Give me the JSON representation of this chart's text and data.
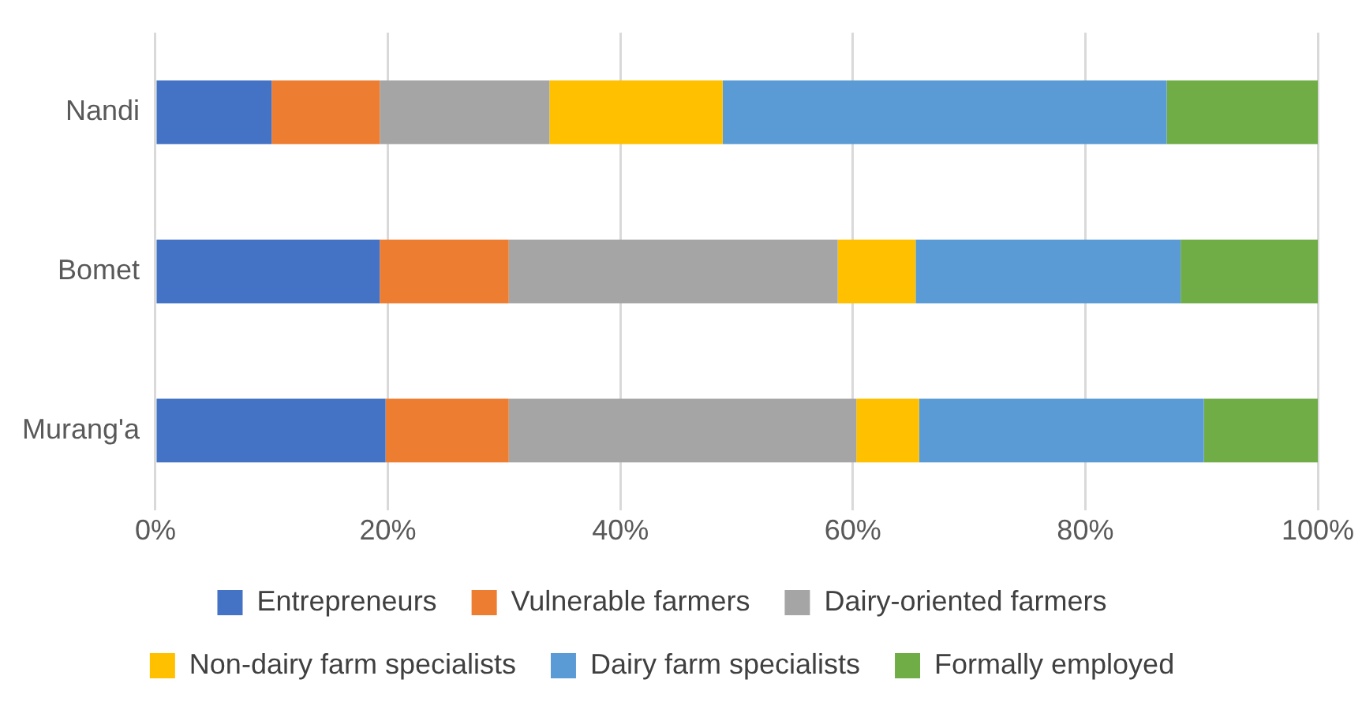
{
  "chart_data": {
    "type": "bar",
    "orientation": "horizontal",
    "stacked": true,
    "categories": [
      "Nandi",
      "Bomet",
      "Murang'a"
    ],
    "series": [
      {
        "name": "Entrepreneurs",
        "color": "#4472c4",
        "values": [
          10,
          19.3,
          19.8
        ]
      },
      {
        "name": "Vulnerable farmers",
        "color": "#ed7d31",
        "values": [
          9.3,
          11.1,
          10.6
        ]
      },
      {
        "name": "Dairy-oriented farmers",
        "color": "#a5a5a5",
        "values": [
          14.6,
          28.3,
          29.9
        ]
      },
      {
        "name": "Non-dairy farm specialists",
        "color": "#ffc000",
        "values": [
          14.9,
          6.7,
          5.4
        ]
      },
      {
        "name": "Dairy farm specialists",
        "color": "#5b9bd5",
        "values": [
          38.2,
          22.8,
          24.5
        ]
      },
      {
        "name": "Formally employed",
        "color": "#70ad47",
        "values": [
          13,
          11.8,
          9.8
        ]
      }
    ],
    "xlim": [
      0,
      100
    ],
    "xticks": [
      {
        "value": 0,
        "label": "0%"
      },
      {
        "value": 20,
        "label": "20%"
      },
      {
        "value": 40,
        "label": "40%"
      },
      {
        "value": 60,
        "label": "60%"
      },
      {
        "value": 80,
        "label": "80%"
      },
      {
        "value": 100,
        "label": "100%"
      }
    ],
    "grid": "x",
    "legend": "bottom"
  }
}
